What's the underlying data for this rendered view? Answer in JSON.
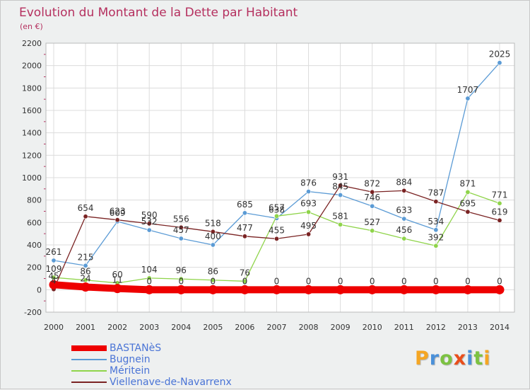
{
  "chart_data": {
    "type": "line",
    "title": "Evolution du Montant de la Dette par Habitant",
    "subtitle": "(en €)",
    "xlabel": "",
    "ylabel": "",
    "categories": [
      "2000",
      "2001",
      "2002",
      "2003",
      "2004",
      "2005",
      "2006",
      "2007",
      "2008",
      "2009",
      "2010",
      "2011",
      "2012",
      "2013",
      "2014"
    ],
    "ylim": [
      -200,
      2200
    ],
    "yticks": [
      -200,
      0,
      200,
      400,
      600,
      800,
      1000,
      1200,
      1400,
      1600,
      1800,
      2000,
      2200
    ],
    "grid": true,
    "series": [
      {
        "name": "BASTANèS",
        "color": "#ee0000",
        "width": 10,
        "values": [
          45,
          24,
          11,
          0,
          0,
          0,
          0,
          0,
          0,
          0,
          0,
          0,
          0,
          0,
          0
        ],
        "labels": [
          "45",
          "24",
          "11",
          "0",
          "0",
          "0",
          "0",
          "0",
          "0",
          "0",
          "0",
          "0",
          "0",
          "0",
          "0"
        ]
      },
      {
        "name": "Bugnein",
        "color": "#5b9bd5",
        "width": 1.3,
        "values": [
          261,
          215,
          609,
          532,
          457,
          400,
          685,
          638,
          876,
          845,
          746,
          633,
          534,
          1707,
          2025
        ],
        "labels": [
          "261",
          "215",
          "609",
          "532",
          "457",
          "400",
          "685",
          "638",
          "876",
          "845",
          "746",
          "633",
          "534",
          "1707",
          "2025"
        ]
      },
      {
        "name": "Méritein",
        "color": "#8fd44a",
        "width": 1.3,
        "values": [
          109,
          86,
          60,
          104,
          96,
          86,
          76,
          657,
          693,
          581,
          527,
          456,
          392,
          871,
          771
        ],
        "labels": [
          "109",
          "86",
          "60",
          "104",
          "96",
          "86",
          "76",
          "657",
          "693",
          "581",
          "527",
          "456",
          "392",
          "871",
          "771"
        ]
      },
      {
        "name": "Viellenave-de-Navarrenx",
        "color": "#7a2323",
        "width": 1.3,
        "values": [
          4,
          654,
          623,
          590,
          556,
          518,
          477,
          455,
          495,
          931,
          872,
          884,
          787,
          695,
          619
        ],
        "labels": [
          "4",
          "654",
          "623",
          "590",
          "556",
          "518",
          "477",
          "455",
          "495",
          "931",
          "872",
          "884",
          "787",
          "695",
          "619"
        ]
      }
    ]
  },
  "logo": {
    "letters": [
      "P",
      "r",
      "o",
      "x",
      "i",
      "t",
      "i"
    ],
    "colors": [
      "#f5a623",
      "#4a90d9",
      "#7cc242",
      "#e94e1b",
      "#4a90d9",
      "#7cc242",
      "#f5a623"
    ]
  }
}
